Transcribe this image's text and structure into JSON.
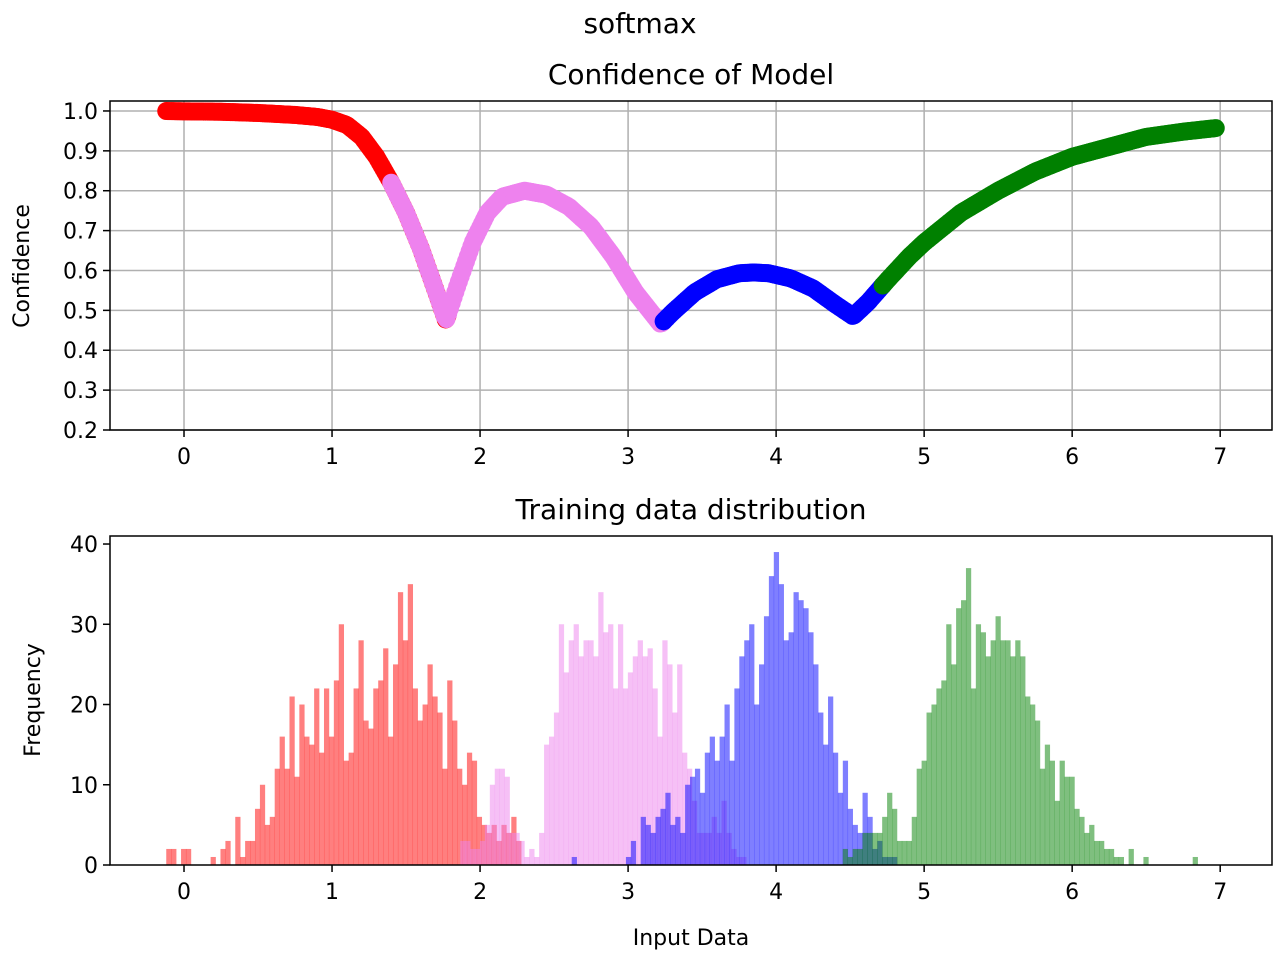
{
  "figure": {
    "suptitle": "softmax"
  },
  "chart_data": [
    {
      "type": "scatter",
      "title": "Confidence of Model",
      "xlabel": "",
      "ylabel": "Confidence",
      "xlim": [
        -0.5,
        7.35
      ],
      "ylim": [
        0.2,
        1.025
      ],
      "xticks": [
        "0",
        "1",
        "2",
        "3",
        "4",
        "5",
        "6",
        "7"
      ],
      "yticks": [
        "0.2",
        "0.3",
        "0.4",
        "0.5",
        "0.6",
        "0.7",
        "0.8",
        "0.9",
        "1.0"
      ],
      "grid": true,
      "series": [
        {
          "color": "#ff0000",
          "x_range": [
            -0.12,
            1.78
          ]
        },
        {
          "color": "#ee82ee",
          "x_range": [
            1.4,
            3.24
          ]
        },
        {
          "color": "#0000ff",
          "x_range": [
            3.24,
            4.72
          ]
        },
        {
          "color": "#008000",
          "x_range": [
            4.72,
            6.97
          ]
        }
      ],
      "curve_points": [
        [
          -0.15,
          1.0
        ],
        [
          0.0,
          0.999
        ],
        [
          0.25,
          0.998
        ],
        [
          0.5,
          0.995
        ],
        [
          0.75,
          0.99
        ],
        [
          0.9,
          0.985
        ],
        [
          1.0,
          0.978
        ],
        [
          1.1,
          0.965
        ],
        [
          1.2,
          0.935
        ],
        [
          1.3,
          0.885
        ],
        [
          1.4,
          0.82
        ],
        [
          1.5,
          0.745
        ],
        [
          1.6,
          0.655
        ],
        [
          1.7,
          0.55
        ],
        [
          1.77,
          0.475
        ],
        [
          1.85,
          0.565
        ],
        [
          1.95,
          0.67
        ],
        [
          2.05,
          0.745
        ],
        [
          2.15,
          0.785
        ],
        [
          2.3,
          0.8
        ],
        [
          2.45,
          0.79
        ],
        [
          2.6,
          0.76
        ],
        [
          2.75,
          0.71
        ],
        [
          2.9,
          0.635
        ],
        [
          3.05,
          0.545
        ],
        [
          3.22,
          0.465
        ],
        [
          3.3,
          0.495
        ],
        [
          3.45,
          0.545
        ],
        [
          3.6,
          0.578
        ],
        [
          3.75,
          0.593
        ],
        [
          3.85,
          0.595
        ],
        [
          3.95,
          0.593
        ],
        [
          4.1,
          0.58
        ],
        [
          4.25,
          0.555
        ],
        [
          4.4,
          0.515
        ],
        [
          4.52,
          0.485
        ],
        [
          4.62,
          0.52
        ],
        [
          4.75,
          0.575
        ],
        [
          4.9,
          0.635
        ],
        [
          5.0,
          0.67
        ],
        [
          5.25,
          0.745
        ],
        [
          5.5,
          0.8
        ],
        [
          5.75,
          0.848
        ],
        [
          6.0,
          0.885
        ],
        [
          6.25,
          0.91
        ],
        [
          6.5,
          0.935
        ],
        [
          6.75,
          0.948
        ],
        [
          6.97,
          0.957
        ]
      ]
    },
    {
      "type": "histogram",
      "title": "Training data distribution",
      "xlabel": "Input Data",
      "ylabel": "Frequency",
      "xlim": [
        -0.5,
        7.35
      ],
      "ylim": [
        0,
        41
      ],
      "xticks": [
        "0",
        "1",
        "2",
        "3",
        "4",
        "5",
        "6",
        "7"
      ],
      "yticks": [
        "0",
        "10",
        "20",
        "30",
        "40"
      ],
      "grid": false,
      "bin_width": 0.0333,
      "series": [
        {
          "color": "#ff0000",
          "opacity": 0.5,
          "start": -0.12,
          "counts": [
            2,
            2,
            0,
            2,
            2,
            0,
            0,
            0,
            0,
            1,
            0,
            2,
            3,
            0,
            6,
            1,
            3,
            3,
            7,
            10,
            5,
            6,
            12,
            16,
            12,
            21,
            11,
            20,
            16,
            15,
            22,
            14,
            22,
            16,
            23,
            30,
            13,
            14,
            22,
            28,
            18,
            17,
            22,
            23,
            27,
            16,
            25,
            34,
            28,
            35,
            22,
            18,
            20,
            25,
            21,
            19,
            12,
            23,
            18,
            12,
            10,
            14,
            13,
            6,
            5,
            4,
            5,
            3,
            5,
            4,
            6,
            3
          ]
        },
        {
          "color": "#ee82ee",
          "opacity": 0.5,
          "start": 1.4,
          "counts": [
            0,
            0,
            0,
            0,
            0,
            0,
            0,
            0,
            0,
            0,
            0,
            0,
            0,
            0,
            3,
            3,
            2,
            2,
            3,
            5,
            10,
            12,
            12,
            11,
            4,
            4,
            3,
            1,
            2,
            1,
            4,
            15,
            16,
            19,
            30,
            24,
            28,
            30,
            26,
            28,
            28,
            26,
            34,
            29,
            30,
            22,
            30,
            22,
            24,
            26,
            28,
            26,
            27,
            22,
            16,
            28,
            25,
            19,
            25,
            14,
            12,
            8,
            4,
            4,
            4,
            6,
            4,
            8,
            4,
            2,
            1,
            1
          ]
        },
        {
          "color": "#0000ff",
          "opacity": 0.5,
          "start": 1.72,
          "counts": [
            0,
            0,
            0,
            0,
            0,
            0,
            0,
            0,
            0,
            0,
            0,
            0,
            0,
            0,
            0,
            0,
            0,
            0,
            0,
            0,
            0,
            0,
            0,
            0,
            0,
            0,
            0,
            1,
            0,
            0,
            0,
            0,
            0,
            0,
            0,
            0,
            0,
            0,
            1,
            3,
            0,
            6,
            5,
            4,
            6,
            7,
            9,
            5,
            6,
            4,
            10,
            11,
            12,
            9,
            14,
            16,
            13,
            16,
            20,
            13,
            22,
            26,
            28,
            30,
            20,
            25,
            31,
            36,
            39,
            35,
            28,
            29,
            34,
            33,
            32,
            29,
            25,
            19,
            15,
            21,
            14,
            9,
            13,
            7,
            5,
            4,
            9,
            6,
            2,
            3,
            1,
            1,
            1
          ]
        },
        {
          "color": "#008000",
          "opacity": 0.5,
          "start": 4.45,
          "counts": [
            2,
            1,
            2,
            2,
            4,
            4,
            4,
            4,
            6,
            9,
            7,
            3,
            3,
            3,
            6,
            12,
            13,
            19,
            20,
            22,
            23,
            30,
            25,
            32,
            33,
            37,
            22,
            30,
            29,
            26,
            28,
            31,
            28,
            28,
            26,
            28,
            26,
            21,
            20,
            18,
            12,
            15,
            13,
            8,
            13,
            11,
            11,
            7,
            6,
            4,
            5,
            3,
            3,
            2,
            2,
            1,
            1,
            0,
            2,
            0,
            0,
            1,
            0,
            0,
            0,
            0,
            0,
            0,
            0,
            0,
            0,
            1
          ]
        }
      ]
    }
  ]
}
